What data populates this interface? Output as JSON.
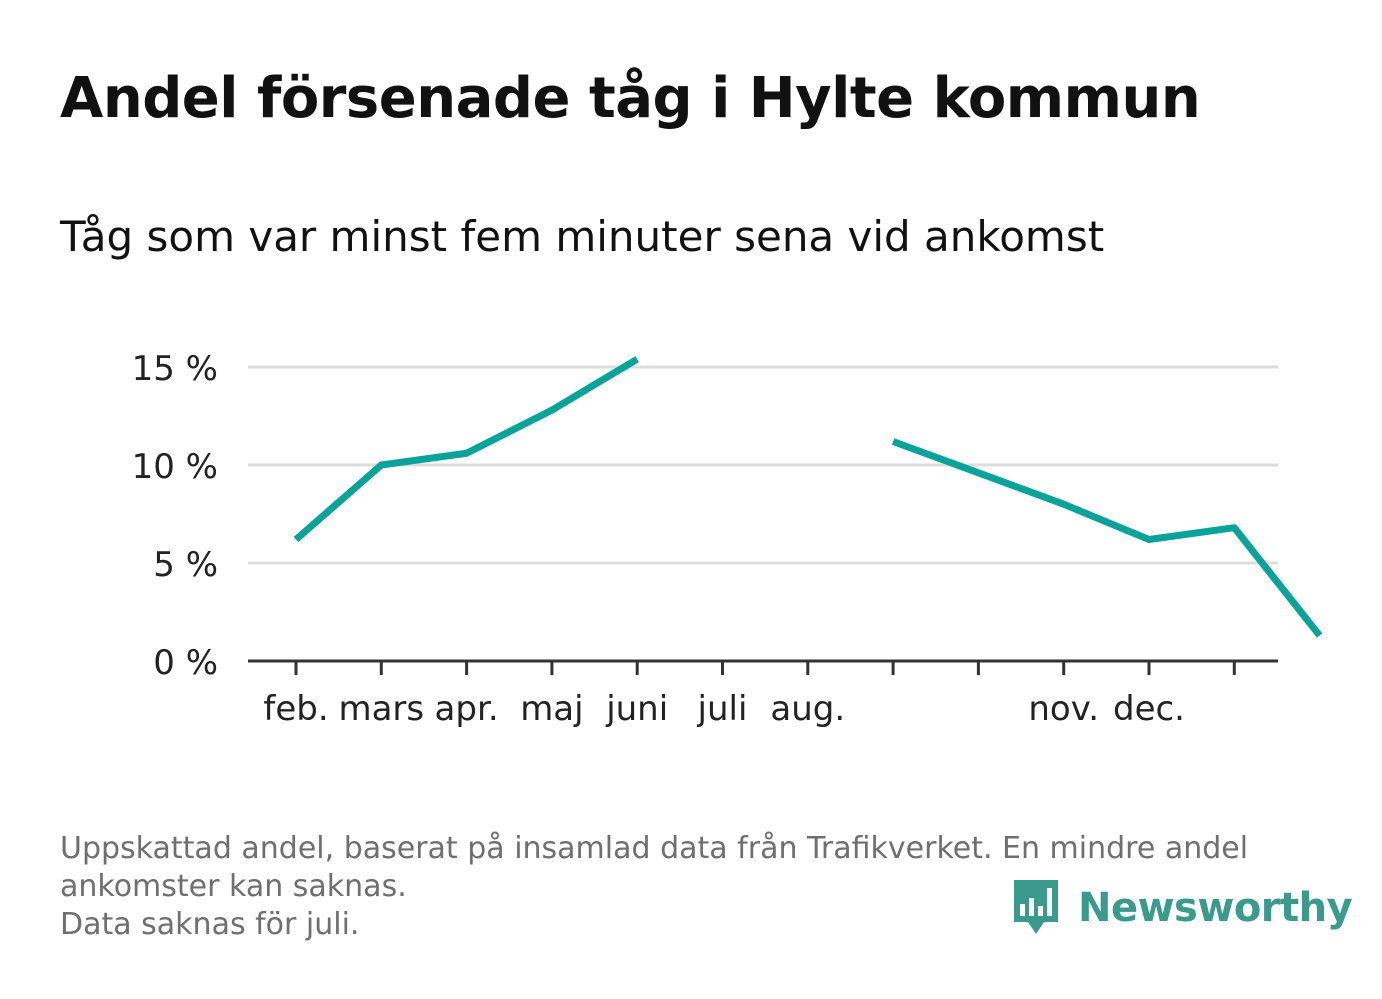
{
  "header": {
    "title": "Andel försenade tåg i Hylte kommun",
    "subtitle": "Tåg som var minst fem minuter sena vid ankomst"
  },
  "footer": {
    "note_lines": [
      "Uppskattad andel, baserat på insamlad data från Trafikverket. En mindre andel",
      "ankomster kan saknas.",
      "Data saknas för juli."
    ],
    "brand": "Newsworthy",
    "brand_color": "#3a9a8c"
  },
  "chart_data": {
    "type": "line",
    "title": "Andel försenade tåg i Hylte kommun",
    "subtitle": "Tåg som var minst fem minuter sena vid ankomst",
    "x_tick_labels": [
      "feb.",
      "mars",
      "apr.",
      "maj",
      "juni",
      "juli",
      "aug.",
      "",
      "",
      "nov.",
      "dec.",
      ""
    ],
    "ylim": [
      0,
      15
    ],
    "yticks": [
      0,
      5,
      10,
      15
    ],
    "ytick_labels": [
      "0 %",
      "5 %",
      "10 %",
      "15 %"
    ],
    "grid": true,
    "line_color": "#0aa39a",
    "series": [
      {
        "values": [
          6.2,
          10.0,
          10.6,
          12.8,
          15.4,
          null,
          null,
          11.2,
          9.6,
          8.0,
          6.2,
          6.8,
          1.3
        ]
      }
    ]
  }
}
